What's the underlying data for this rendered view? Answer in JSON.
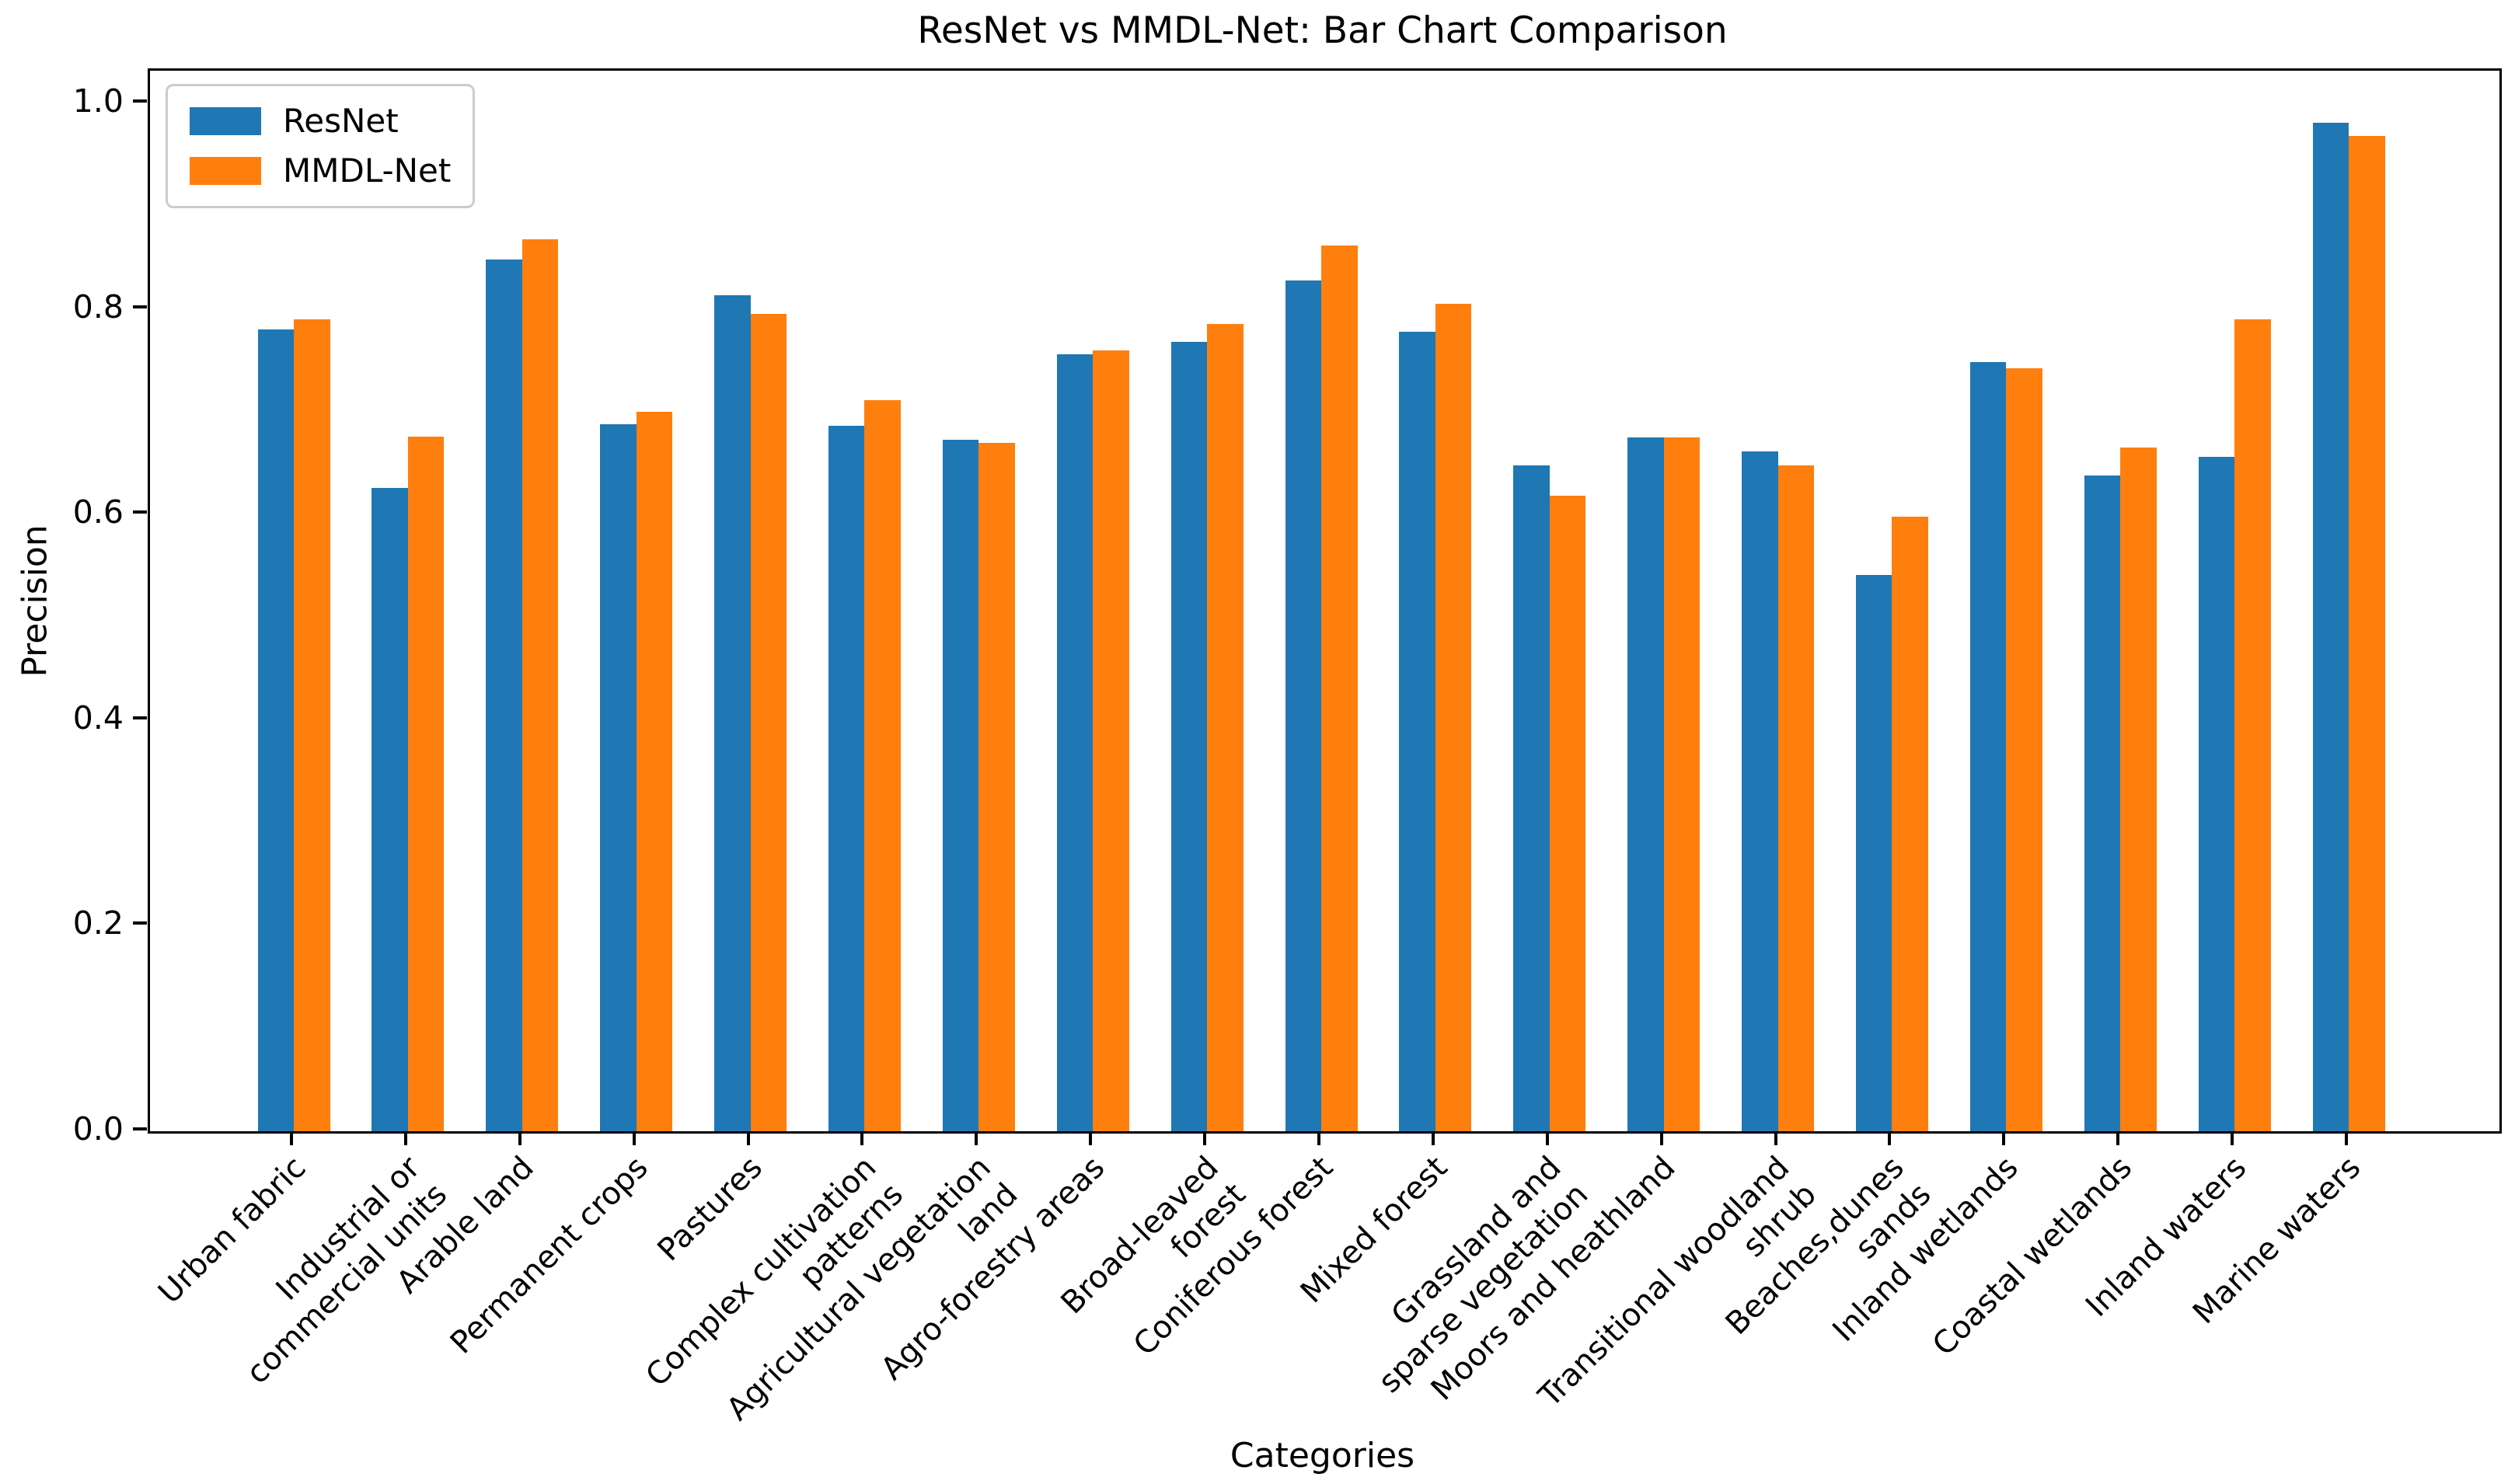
{
  "title": "ResNet vs MMDL-Net: Bar Chart Comparison",
  "axes": {
    "ylabel": "Precision",
    "xlabel": "Categories",
    "ytick_labels": [
      "0.0",
      "0.2",
      "0.4",
      "0.6",
      "0.8",
      "1.0"
    ]
  },
  "legend": {
    "items": [
      {
        "label": "ResNet",
        "color": "#1f77b4"
      },
      {
        "label": "MMDL-Net",
        "color": "#ff7f0e"
      }
    ]
  },
  "chart_data": {
    "type": "bar",
    "title": "ResNet vs MMDL-Net: Bar Chart Comparison",
    "xlabel": "Categories",
    "ylabel": "Precision",
    "ylim": [
      0.0,
      1.03
    ],
    "yticks": [
      0.0,
      0.2,
      0.4,
      0.6,
      0.8,
      1.0
    ],
    "grid": false,
    "legend_position": "upper left",
    "bar_group_width": 0.64,
    "categories": [
      "Urban fabric",
      "Industrial or commercial units",
      "Arable land",
      "Permanent crops",
      "Pastures",
      "Complex cultivation patterns",
      "Agricultural vegetation land",
      "Agro-forestry areas",
      "Broad-leaved forest",
      "Coniferous forest",
      "Mixed forest",
      "Grassland and sparse vegetation",
      "Moors and heathland",
      "Transitional woodland shrub",
      "Beaches,dunes sands",
      "Inland wetlands",
      "Coastal wetlands",
      "Inland waters",
      "Marine waters"
    ],
    "categories_display": [
      "Urban fabric",
      "Industrial or\ncommercial units",
      "Arable land",
      "Permanent crops",
      "Pastures",
      "Complex cultivation\npatterns",
      "Agricultural vegetation\nland",
      "Agro-forestry areas",
      "Broad-leaved\nforest",
      "Coniferous forest",
      "Mixed forest",
      "Grassland and\nsparse vegetation",
      "Moors and heathland",
      "Transitional woodland\nshrub",
      "Beaches,dunes\nsands",
      "Inland wetlands",
      "Coastal wetlands",
      "Inland waters",
      "Marine waters"
    ],
    "series": [
      {
        "name": "ResNet",
        "color": "#1f77b4",
        "values": [
          0.78,
          0.626,
          0.848,
          0.688,
          0.813,
          0.686,
          0.673,
          0.756,
          0.768,
          0.828,
          0.778,
          0.648,
          0.675,
          0.661,
          0.541,
          0.748,
          0.638,
          0.656,
          0.981
        ]
      },
      {
        "name": "MMDL-Net",
        "color": "#ff7f0e",
        "values": [
          0.79,
          0.676,
          0.868,
          0.7,
          0.795,
          0.711,
          0.67,
          0.76,
          0.785,
          0.862,
          0.805,
          0.618,
          0.675,
          0.648,
          0.598,
          0.742,
          0.665,
          0.79,
          0.968
        ]
      }
    ]
  }
}
